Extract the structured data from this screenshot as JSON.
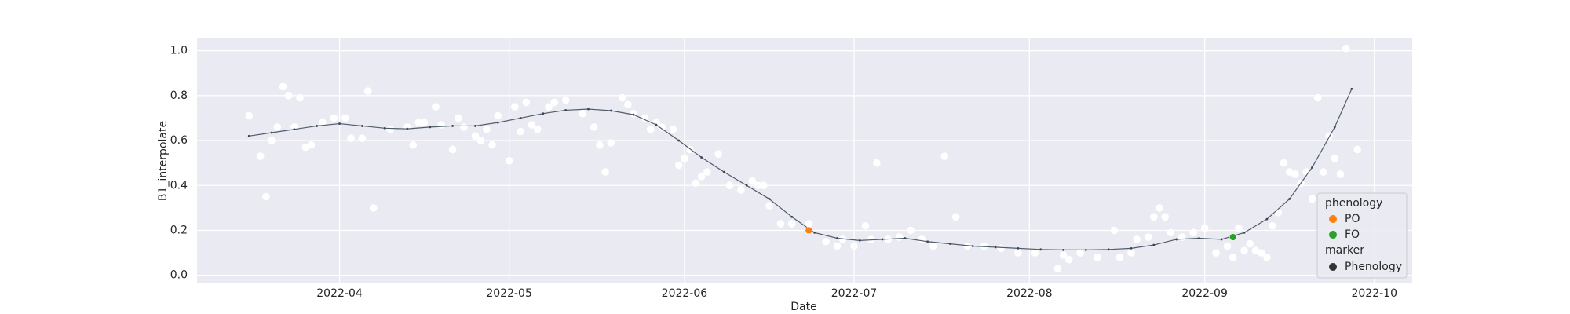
{
  "chart_data": {
    "type": "scatter",
    "xlabel": "Date",
    "ylabel": "B1_interpolate",
    "xlim": [
      19057.8,
      19272.7
    ],
    "ylim": [
      -0.036,
      1.058
    ],
    "xticks": [
      {
        "value": 19083,
        "label": "2022-04"
      },
      {
        "value": 19113,
        "label": "2022-05"
      },
      {
        "value": 19144,
        "label": "2022-06"
      },
      {
        "value": 19174,
        "label": "2022-07"
      },
      {
        "value": 19205,
        "label": "2022-08"
      },
      {
        "value": 19236,
        "label": "2022-09"
      },
      {
        "value": 19266,
        "label": "2022-10"
      }
    ],
    "yticks": [
      {
        "value": 0,
        "label": "0.0"
      },
      0.2,
      0.4,
      0.6,
      0.8,
      {
        "value": 1,
        "label": "1.0"
      }
    ],
    "grid": true,
    "background": "#eaeaf2",
    "series": [
      {
        "kind": "scatter",
        "color": "#ffffff",
        "x": [
          19067,
          19069,
          19070,
          19071,
          19072,
          19073,
          19074,
          19075,
          19076,
          19077,
          19078,
          19080,
          19082,
          19084,
          19085,
          19087,
          19088,
          19089,
          19092,
          19095,
          19096,
          19097,
          19098,
          19100,
          19101,
          19103,
          19104,
          19105,
          19107,
          19108,
          19109,
          19110,
          19111,
          19113,
          19114,
          19115,
          19116,
          19117,
          19118,
          19120,
          19121,
          19123,
          19126,
          19128,
          19129,
          19130,
          19131,
          19133,
          19134,
          19135,
          19137,
          19138,
          19139,
          19140,
          19142,
          19143,
          19144,
          19145,
          19146,
          19147,
          19148,
          19150,
          19152,
          19154,
          19156,
          19157,
          19158,
          19159,
          19161,
          19163,
          19166,
          19169,
          19171,
          19172,
          19174,
          19176,
          19177,
          19178,
          19180,
          19182,
          19184,
          19186,
          19188,
          19190,
          19192,
          19194,
          19197,
          19200,
          19203,
          19206,
          19210,
          19211,
          19212,
          19214,
          19217,
          19220,
          19221,
          19223,
          19224,
          19226,
          19227,
          19228,
          19229,
          19230,
          19232,
          19234,
          19236,
          19238,
          19240,
          19241,
          19242,
          19243,
          19244,
          19245,
          19246,
          19247,
          19248,
          19249,
          19250,
          19251,
          19252,
          19253,
          19254,
          19255,
          19256,
          19257,
          19258,
          19259,
          19260,
          19261,
          19263
        ],
        "values": [
          0.71,
          0.53,
          0.35,
          0.6,
          0.66,
          0.84,
          0.8,
          0.66,
          0.79,
          0.57,
          0.58,
          0.68,
          0.7,
          0.7,
          0.61,
          0.61,
          0.82,
          0.3,
          0.65,
          0.66,
          0.58,
          0.68,
          0.68,
          0.75,
          0.67,
          0.56,
          0.7,
          0.66,
          0.62,
          0.6,
          0.65,
          0.58,
          0.71,
          0.51,
          0.75,
          0.64,
          0.77,
          0.67,
          0.65,
          0.75,
          0.77,
          0.78,
          0.72,
          0.66,
          0.58,
          0.46,
          0.59,
          0.79,
          0.76,
          0.72,
          0.7,
          0.65,
          0.68,
          0.66,
          0.65,
          0.49,
          0.52,
          0.56,
          0.41,
          0.44,
          0.46,
          0.54,
          0.4,
          0.38,
          0.42,
          0.4,
          0.4,
          0.31,
          0.23,
          0.23,
          0.23,
          0.15,
          0.13,
          0.16,
          0.13,
          0.22,
          0.16,
          0.5,
          0.16,
          0.17,
          0.2,
          0.16,
          0.13,
          0.53,
          0.26,
          0.13,
          0.13,
          0.12,
          0.1,
          0.1,
          0.03,
          0.09,
          0.07,
          0.1,
          0.08,
          0.2,
          0.08,
          0.1,
          0.16,
          0.17,
          0.26,
          0.3,
          0.26,
          0.19,
          0.17,
          0.19,
          0.21,
          0.1,
          0.13,
          0.08,
          0.21,
          0.11,
          0.14,
          0.11,
          0.1,
          0.08,
          0.22,
          0.28,
          0.5,
          0.46,
          0.45,
          0.41,
          0.46,
          0.34,
          0.79,
          0.46,
          0.62,
          0.52,
          0.45,
          1.01,
          0.56
        ]
      },
      {
        "kind": "line",
        "color": "#4f5d6b",
        "x": [
          19067,
          19071,
          19075,
          19079,
          19083,
          19087,
          19091,
          19095,
          19099,
          19103,
          19107,
          19111,
          19115,
          19119,
          19123,
          19127,
          19131,
          19135,
          19139,
          19143,
          19147,
          19151,
          19155,
          19159,
          19163,
          19167,
          19171,
          19175,
          19179,
          19183,
          19187,
          19191,
          19195,
          19199,
          19203,
          19207,
          19211,
          19215,
          19219,
          19223,
          19227,
          19231,
          19235,
          19239,
          19243,
          19247,
          19251,
          19255,
          19259,
          19262
        ],
        "values": [
          0.62,
          0.635,
          0.65,
          0.665,
          0.675,
          0.665,
          0.655,
          0.652,
          0.66,
          0.665,
          0.665,
          0.68,
          0.7,
          0.72,
          0.735,
          0.74,
          0.733,
          0.715,
          0.67,
          0.6,
          0.525,
          0.46,
          0.4,
          0.34,
          0.26,
          0.19,
          0.165,
          0.155,
          0.16,
          0.165,
          0.15,
          0.14,
          0.13,
          0.125,
          0.12,
          0.115,
          0.113,
          0.113,
          0.115,
          0.12,
          0.135,
          0.16,
          0.165,
          0.16,
          0.19,
          0.25,
          0.34,
          0.48,
          0.66,
          0.83
        ]
      },
      {
        "name": "PO",
        "kind": "scatter",
        "color": "#ff7f0e",
        "x": [
          19166
        ],
        "values": [
          0.2
        ]
      },
      {
        "name": "FO",
        "kind": "scatter",
        "color": "#2ca02c",
        "x": [
          19241
        ],
        "values": [
          0.17
        ]
      }
    ],
    "legend": {
      "title": "phenology",
      "marker_title": "marker",
      "marker_label": "Phenology",
      "marker_color": "#333333",
      "corner": "lower right"
    }
  }
}
